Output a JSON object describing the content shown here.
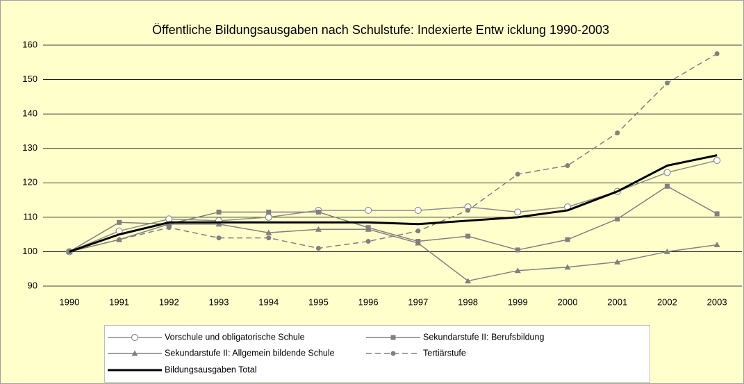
{
  "chart_data": {
    "type": "line",
    "title": "Öffentliche Bildungsausgaben nach Schulstufe: Indexierte Entw icklung 1990-2003",
    "categories": [
      "1990",
      "1991",
      "1992",
      "1993",
      "1994",
      "1995",
      "1996",
      "1997",
      "1998",
      "1999",
      "2000",
      "2001",
      "2002",
      "2003"
    ],
    "series": [
      {
        "name": "Vorschule und obligatorische Schule",
        "color": "#8c8c8c",
        "marker": "open-circle",
        "dashed": false,
        "values": [
          100,
          106,
          109.5,
          109,
          110,
          112,
          112,
          112,
          113,
          111.5,
          113,
          117.5,
          123,
          126.5
        ]
      },
      {
        "name": "Sekundarstufe II: Berufsbildung",
        "color": "#808080",
        "marker": "square",
        "dashed": false,
        "values": [
          100,
          108.5,
          108,
          111.5,
          111.5,
          111.5,
          107,
          103,
          104.5,
          100.5,
          103.5,
          109.5,
          119,
          111
        ]
      },
      {
        "name": "Sekundarstufe II: Allgemein bildende Schule",
        "color": "#808080",
        "marker": "triangle",
        "dashed": false,
        "values": [
          100,
          103.5,
          108,
          108,
          105.5,
          106.5,
          106.5,
          102.5,
          91.5,
          94.5,
          95.5,
          97,
          100,
          102
        ]
      },
      {
        "name": "Tertiärstufe",
        "color": "#808080",
        "marker": "circle",
        "dashed": true,
        "values": [
          100,
          103.5,
          107,
          104,
          104,
          101,
          103,
          106,
          112,
          122.5,
          125,
          134.5,
          149,
          157.5
        ]
      },
      {
        "name": "Bildungsausgaben Total",
        "color": "#000000",
        "marker": "none",
        "dashed": false,
        "values": [
          100,
          105,
          108.5,
          108.5,
          108.5,
          108.5,
          108.5,
          108,
          109,
          110,
          112,
          117.5,
          125,
          128
        ]
      }
    ],
    "ylim": [
      90,
      160
    ],
    "yticks": [
      90,
      100,
      110,
      120,
      130,
      140,
      150,
      160
    ],
    "grid": true,
    "legend": "bottom"
  }
}
